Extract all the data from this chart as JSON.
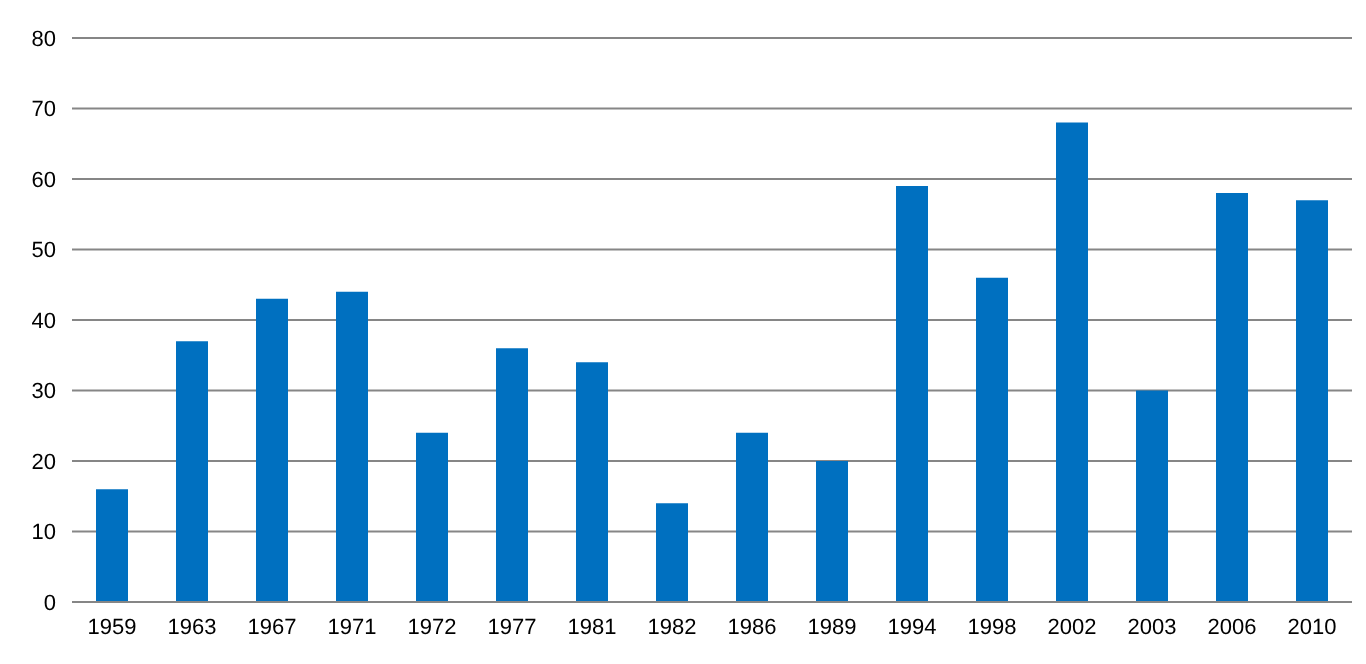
{
  "chart_data": {
    "type": "bar",
    "categories": [
      "1959",
      "1963",
      "1967",
      "1971",
      "1972",
      "1977",
      "1981",
      "1982",
      "1986",
      "1989",
      "1994",
      "1998",
      "2002",
      "2003",
      "2006",
      "2010"
    ],
    "values": [
      16,
      37,
      43,
      44,
      24,
      36,
      34,
      14,
      24,
      20,
      59,
      46,
      68,
      30,
      58,
      57
    ],
    "color": "#0070c0",
    "ylim": [
      0,
      80
    ],
    "yticks": [
      0,
      10,
      20,
      30,
      40,
      50,
      60,
      70,
      80
    ],
    "grid": "y"
  }
}
